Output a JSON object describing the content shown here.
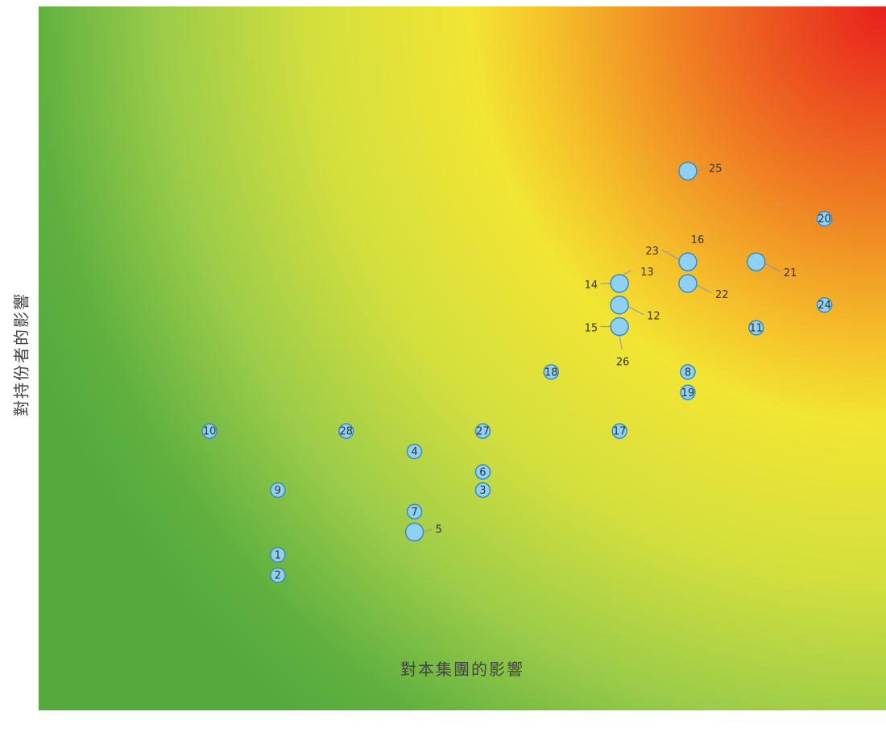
{
  "chart_data": {
    "type": "scatter",
    "xlabel": "對本集團的影響",
    "ylabel": "對持份者的影響",
    "xlim": [
      0,
      6.2
    ],
    "ylim": [
      0,
      6.2
    ],
    "grid": false,
    "colors": {
      "low": "#5aae3e",
      "mid": "#f2e533",
      "high": "#e8201e",
      "marker_fill": "#8fd1f2",
      "marker_stroke": "#3b8ac4",
      "leader": "#9a9a9a"
    },
    "points": [
      {
        "id": "1",
        "x": 1.75,
        "y": 1.37,
        "label": "inside"
      },
      {
        "id": "2",
        "x": 1.75,
        "y": 1.19,
        "label": "inside"
      },
      {
        "id": "3",
        "x": 3.25,
        "y": 1.94,
        "label": "inside"
      },
      {
        "id": "4",
        "x": 2.75,
        "y": 2.28,
        "label": "inside"
      },
      {
        "id": "5",
        "x": 2.75,
        "y": 1.57,
        "label": "right"
      },
      {
        "id": "6",
        "x": 3.25,
        "y": 2.1,
        "label": "inside"
      },
      {
        "id": "7",
        "x": 2.75,
        "y": 1.75,
        "label": "inside"
      },
      {
        "id": "8",
        "x": 4.75,
        "y": 2.98,
        "label": "inside"
      },
      {
        "id": "9",
        "x": 1.75,
        "y": 1.94,
        "label": "inside"
      },
      {
        "id": "10",
        "x": 1.25,
        "y": 2.46,
        "label": "inside"
      },
      {
        "id": "11",
        "x": 5.25,
        "y": 3.37,
        "label": "inside"
      },
      {
        "id": "12",
        "x": 4.25,
        "y": 3.57,
        "label": "right-down"
      },
      {
        "id": "13",
        "x": 4.25,
        "y": 3.76,
        "label": "right-up"
      },
      {
        "id": "14",
        "x": 4.25,
        "y": 3.76,
        "label": "left"
      },
      {
        "id": "15",
        "x": 4.25,
        "y": 3.38,
        "label": "left"
      },
      {
        "id": "16",
        "x": 4.75,
        "y": 3.95,
        "label": "above"
      },
      {
        "id": "17",
        "x": 4.25,
        "y": 2.46,
        "label": "inside"
      },
      {
        "id": "18",
        "x": 3.75,
        "y": 2.98,
        "label": "inside"
      },
      {
        "id": "19",
        "x": 4.75,
        "y": 2.8,
        "label": "inside"
      },
      {
        "id": "20",
        "x": 5.75,
        "y": 4.33,
        "label": "inside"
      },
      {
        "id": "21",
        "x": 5.25,
        "y": 3.95,
        "label": "right-down"
      },
      {
        "id": "22",
        "x": 4.75,
        "y": 3.76,
        "label": "right-down"
      },
      {
        "id": "23",
        "x": 4.75,
        "y": 3.95,
        "label": "left-up"
      },
      {
        "id": "24",
        "x": 5.75,
        "y": 3.57,
        "label": "inside"
      },
      {
        "id": "25",
        "x": 4.75,
        "y": 4.75,
        "label": "right"
      },
      {
        "id": "26",
        "x": 4.25,
        "y": 3.38,
        "label": "below"
      },
      {
        "id": "27",
        "x": 3.25,
        "y": 2.46,
        "label": "inside"
      },
      {
        "id": "28",
        "x": 2.25,
        "y": 2.46,
        "label": "inside"
      }
    ]
  }
}
